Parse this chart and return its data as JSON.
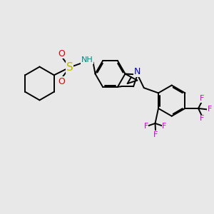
{
  "bg_color": "#e8e8e8",
  "bond_color": "#000000",
  "S_color": "#b8b800",
  "O_color": "#dd0000",
  "N_color": "#0000cc",
  "NH_color": "#008888",
  "F_color": "#cc00cc",
  "bond_lw": 1.4,
  "figsize": [
    3.0,
    3.0
  ],
  "dpi": 100,
  "xlim": [
    0,
    10
  ],
  "ylim": [
    0,
    10
  ]
}
